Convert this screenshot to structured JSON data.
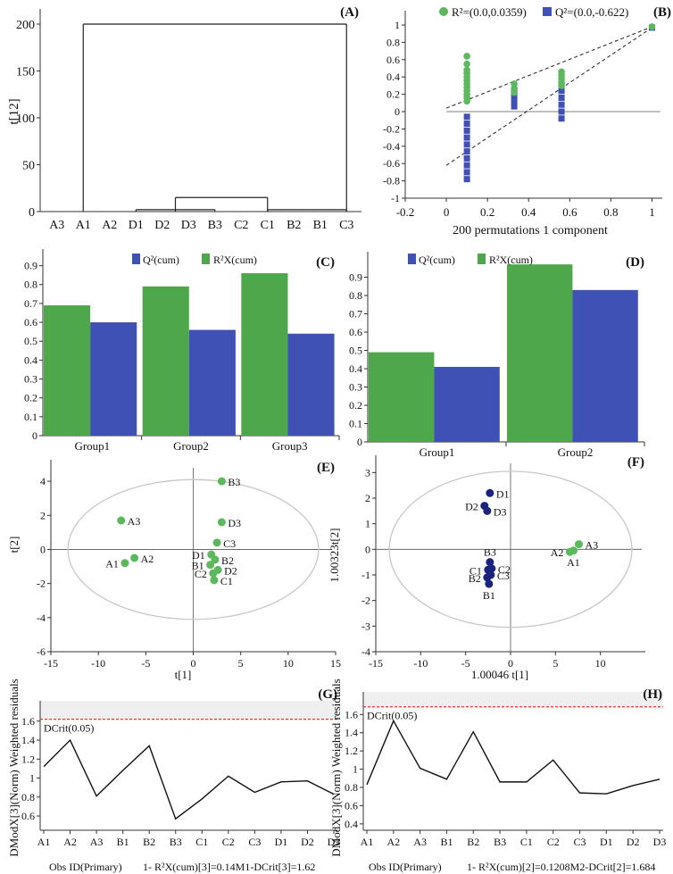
{
  "colors": {
    "green": "#5cb85c",
    "green_bar": "#4ea84b",
    "blue": "#3f51b5",
    "navy": "#1a237e",
    "red": "#ff2a2a",
    "ellipse": "#c8c8c8"
  },
  "chart_data": [
    {
      "id": "A",
      "type": "dendrogram",
      "panel_label": "(A)",
      "ylabel": "t[12]",
      "ylim": [
        0,
        200
      ],
      "yticks": [
        0,
        50,
        100,
        150,
        200
      ],
      "leaves": [
        "A3",
        "A1",
        "A2",
        "D1",
        "D2",
        "D3",
        "B3",
        "C2",
        "C1",
        "B2",
        "B1",
        "C3"
      ],
      "merges": [
        {
          "left": 1,
          "right": 11,
          "height": 200
        },
        {
          "left": 4.5,
          "right": 8,
          "height": 15
        },
        {
          "left": 3,
          "right": 6,
          "height": 2
        },
        {
          "left": 8,
          "right": 11,
          "height": 2
        }
      ]
    },
    {
      "id": "B",
      "type": "scatter",
      "panel_label": "(B)",
      "legend": {
        "r2": "R²=(0.0,0.0359)",
        "q2": "Q²=(0.0,-0.622)"
      },
      "xlabel": "200 permutations 1 component",
      "xlim": [
        -0.2,
        1.05
      ],
      "ylim": [
        -1,
        1
      ],
      "xticks": [
        -0.2,
        0,
        0.2,
        0.4,
        0.6,
        0.8,
        1
      ],
      "yticks": [
        -1,
        -0.8,
        -0.6,
        -0.4,
        -0.2,
        0,
        0.2,
        0.4,
        0.6,
        0.8,
        1
      ],
      "r2_points": [
        [
          0.1,
          0.64
        ],
        [
          0.1,
          0.55
        ],
        [
          0.1,
          0.48
        ],
        [
          0.1,
          0.44
        ],
        [
          0.1,
          0.4
        ],
        [
          0.1,
          0.36
        ],
        [
          0.1,
          0.32
        ],
        [
          0.1,
          0.28
        ],
        [
          0.1,
          0.24
        ],
        [
          0.1,
          0.2
        ],
        [
          0.1,
          0.16
        ],
        [
          0.1,
          0.12
        ],
        [
          0.33,
          0.32
        ],
        [
          0.33,
          0.27
        ],
        [
          0.33,
          0.22
        ],
        [
          0.56,
          0.46
        ],
        [
          0.56,
          0.42
        ],
        [
          0.56,
          0.38
        ],
        [
          0.56,
          0.34
        ],
        [
          0.56,
          0.3
        ],
        [
          1.0,
          0.98
        ]
      ],
      "q2_points": [
        [
          0.1,
          -0.78
        ],
        [
          0.1,
          -0.7
        ],
        [
          0.1,
          -0.62
        ],
        [
          0.1,
          -0.54
        ],
        [
          0.1,
          -0.46
        ],
        [
          0.1,
          -0.38
        ],
        [
          0.1,
          -0.3
        ],
        [
          0.1,
          -0.22
        ],
        [
          0.1,
          -0.14
        ],
        [
          0.1,
          -0.06
        ],
        [
          0.33,
          0.24
        ],
        [
          0.33,
          0.18
        ],
        [
          0.33,
          0.12
        ],
        [
          0.33,
          0.06
        ],
        [
          0.56,
          0.32
        ],
        [
          0.56,
          0.24
        ],
        [
          0.56,
          0.16
        ],
        [
          0.56,
          0.08
        ],
        [
          0.56,
          0.0
        ],
        [
          0.56,
          -0.08
        ],
        [
          1.0,
          0.97
        ]
      ],
      "r2_line": {
        "from": [
          0,
          0.04
        ],
        "to": [
          1,
          0.98
        ]
      },
      "q2_line": {
        "from": [
          0,
          -0.62
        ],
        "to": [
          1,
          0.97
        ]
      }
    },
    {
      "id": "C",
      "type": "bar",
      "panel_label": "(C)",
      "legend": [
        "Q²(cum)",
        "R²X(cum)"
      ],
      "categories": [
        "Group1",
        "Group2",
        "Group3"
      ],
      "series": [
        {
          "name": "R2X(cum)",
          "values": [
            0.69,
            0.79,
            0.86
          ]
        },
        {
          "name": "Q2(cum)",
          "values": [
            0.6,
            0.56,
            0.54
          ]
        }
      ],
      "ylim": [
        0,
        0.95
      ],
      "yticks": [
        0,
        0.1,
        0.2,
        0.3,
        0.4,
        0.5,
        0.6,
        0.7,
        0.8,
        0.9
      ]
    },
    {
      "id": "D",
      "type": "bar",
      "panel_label": "(D)",
      "legend": [
        "Q²(cum)",
        "R²X(cum)"
      ],
      "categories": [
        "Group1",
        "Group2"
      ],
      "series": [
        {
          "name": "R2X(cum)",
          "values": [
            0.49,
            0.97
          ]
        },
        {
          "name": "Q2(cum)",
          "values": [
            0.41,
            0.83
          ]
        }
      ],
      "ylim": [
        0,
        1.0
      ],
      "yticks": [
        0,
        0.1,
        0.2,
        0.3,
        0.4,
        0.5,
        0.6,
        0.7,
        0.8,
        0.9
      ]
    },
    {
      "id": "E",
      "type": "scatter",
      "panel_label": "(E)",
      "xlabel": "t[1]",
      "ylabel": "t[2]",
      "xlim": [
        -15,
        15
      ],
      "ylim": [
        -6,
        5
      ],
      "xticks": [
        -15,
        -10,
        -5,
        0,
        5,
        10,
        15
      ],
      "yticks": [
        -6,
        -4,
        -2,
        0,
        2,
        4
      ],
      "ellipse": {
        "rx": 13.2,
        "ry": 4.1
      },
      "points": [
        {
          "label": "A3",
          "x": -7.6,
          "y": 1.7,
          "side": "right"
        },
        {
          "label": "A2",
          "x": -6.2,
          "y": -0.5,
          "side": "right"
        },
        {
          "label": "A1",
          "x": -7.2,
          "y": -0.8,
          "side": "left"
        },
        {
          "label": "B3",
          "x": 3.0,
          "y": 4.0,
          "side": "right"
        },
        {
          "label": "D3",
          "x": 3.0,
          "y": 1.6,
          "side": "right"
        },
        {
          "label": "C3",
          "x": 2.5,
          "y": 0.4,
          "side": "right"
        },
        {
          "label": "D1",
          "x": 1.9,
          "y": -0.3,
          "side": "left"
        },
        {
          "label": "B2",
          "x": 2.3,
          "y": -0.6,
          "side": "right"
        },
        {
          "label": "B1",
          "x": 1.8,
          "y": -0.9,
          "side": "left"
        },
        {
          "label": "D2",
          "x": 2.6,
          "y": -1.2,
          "side": "right"
        },
        {
          "label": "C2",
          "x": 2.1,
          "y": -1.4,
          "side": "left"
        },
        {
          "label": "C1",
          "x": 2.2,
          "y": -1.8,
          "side": "right"
        }
      ]
    },
    {
      "id": "F",
      "type": "scatter",
      "panel_label": "(F)",
      "xlabel": "1.00046 t[1]",
      "ylabel": "1.00323t[2]",
      "xlim": [
        -15,
        15
      ],
      "ylim": [
        -4,
        3.5
      ],
      "xticks": [
        -15,
        -10,
        -5,
        0,
        5,
        10
      ],
      "yticks": [
        -4,
        -3,
        -2,
        -1,
        0,
        1,
        2,
        3
      ],
      "ellipse": {
        "rx": 13.5,
        "ry": 3.05
      },
      "points": [
        {
          "label": "D1",
          "x": -2.3,
          "y": 2.2,
          "side": "right",
          "group": "navy"
        },
        {
          "label": "D2",
          "x": -2.9,
          "y": 1.7,
          "side": "left",
          "group": "navy"
        },
        {
          "label": "D3",
          "x": -2.6,
          "y": 1.5,
          "side": "right",
          "group": "navy"
        },
        {
          "label": "B3",
          "x": -2.3,
          "y": -0.5,
          "side": "above",
          "group": "navy"
        },
        {
          "label": "C1",
          "x": -2.5,
          "y": -0.8,
          "side": "left",
          "group": "navy"
        },
        {
          "label": "C2",
          "x": -2.1,
          "y": -0.75,
          "side": "right",
          "group": "navy"
        },
        {
          "label": "C3",
          "x": -2.2,
          "y": -1.0,
          "side": "right",
          "group": "navy"
        },
        {
          "label": "B2",
          "x": -2.6,
          "y": -1.1,
          "side": "left",
          "group": "navy"
        },
        {
          "label": "B1",
          "x": -2.4,
          "y": -1.35,
          "side": "below",
          "group": "navy"
        },
        {
          "label": "A3",
          "x": 7.6,
          "y": 0.2,
          "side": "right",
          "group": "green"
        },
        {
          "label": "A2",
          "x": 6.6,
          "y": -0.1,
          "side": "left",
          "group": "green"
        },
        {
          "label": "A1",
          "x": 7.0,
          "y": -0.05,
          "side": "below",
          "group": "green"
        }
      ]
    },
    {
      "id": "G",
      "type": "line",
      "panel_label": "(G)",
      "ylabel": "DModX[3](Norm) Weighted residuals",
      "xlabel": "Obs ID(Primary)",
      "caption": "1- R²X(cum)[3]=0.14M1-DCrit[3]=1.62",
      "categories": [
        "A1",
        "A2",
        "A3",
        "B1",
        "B2",
        "B3",
        "C1",
        "C2",
        "C3",
        "D1",
        "D2",
        "D3"
      ],
      "values": [
        1.12,
        1.4,
        0.81,
        1.08,
        1.34,
        0.57,
        0.78,
        1.02,
        0.85,
        0.96,
        0.97,
        0.83
      ],
      "dcrit": 1.62,
      "dcrit_label": "DCrit(0.05)",
      "ylim": [
        0.45,
        1.72
      ],
      "yticks": [
        0.6,
        0.8,
        1,
        1.2,
        1.4,
        1.6
      ],
      "ytick_labels": [
        "0.6",
        "0.8",
        "1",
        "1.2",
        "1.4",
        "1.6"
      ]
    },
    {
      "id": "H",
      "type": "line",
      "panel_label": "(H)",
      "ylabel": "DModX[3](Norm) Weighted residuals",
      "xlabel": "Obs ID(Primary)",
      "caption": "1- R²X(cum)[2]=0.1208M2-DCrit[2]=1.684",
      "categories": [
        "A1",
        "A2",
        "A3",
        "B1",
        "B2",
        "B3",
        "C1",
        "C2",
        "C3",
        "D1",
        "D2",
        "D3"
      ],
      "values": [
        0.83,
        1.53,
        1.01,
        0.89,
        1.41,
        0.86,
        0.86,
        1.1,
        0.74,
        0.73,
        0.82,
        0.89
      ],
      "dcrit": 1.684,
      "dcrit_label": "DCrit(0.05)",
      "ylim": [
        0.33,
        1.75
      ],
      "yticks": [
        0.4,
        0.6,
        0.8,
        1,
        1.2,
        1.4,
        1.6
      ],
      "ytick_labels": [
        "0.4",
        "0.6",
        "0.8",
        "1",
        "1.2",
        "1.4",
        "1.6"
      ]
    }
  ]
}
